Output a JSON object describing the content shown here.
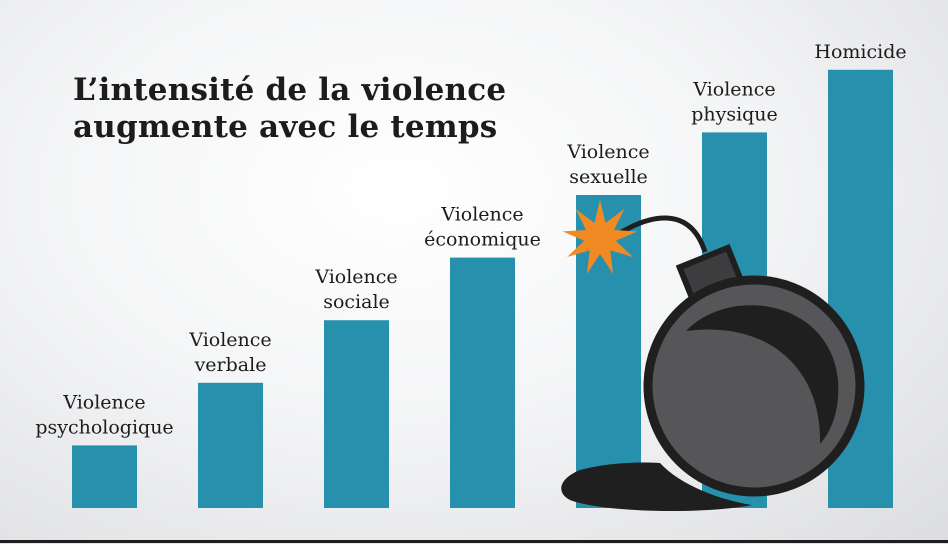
{
  "chart_data": {
    "type": "bar",
    "title": "L’intensité de la violence augmente avec le temps",
    "title_lines": [
      "L’intensité de la violence",
      "augmente avec le temps"
    ],
    "categories": [
      [
        "Violence",
        "psychologique"
      ],
      [
        "Violence",
        "verbale"
      ],
      [
        "Violence",
        "sociale"
      ],
      [
        "Violence",
        "économique"
      ],
      [
        "Violence",
        "sexuelle"
      ],
      [
        "Violence",
        "physique"
      ],
      [
        "Homicide"
      ]
    ],
    "values": [
      1,
      2,
      3,
      4,
      5,
      6,
      7
    ],
    "xlabel": "",
    "ylabel": "",
    "ylim": [
      0,
      7
    ],
    "grid": false,
    "legend": "none",
    "colors": {
      "bar": "#2791ad",
      "bomb": "#565658",
      "bomb_outline": "#1f1f1f",
      "spark": "#f28a24"
    },
    "decoration": "bomb-icon"
  }
}
